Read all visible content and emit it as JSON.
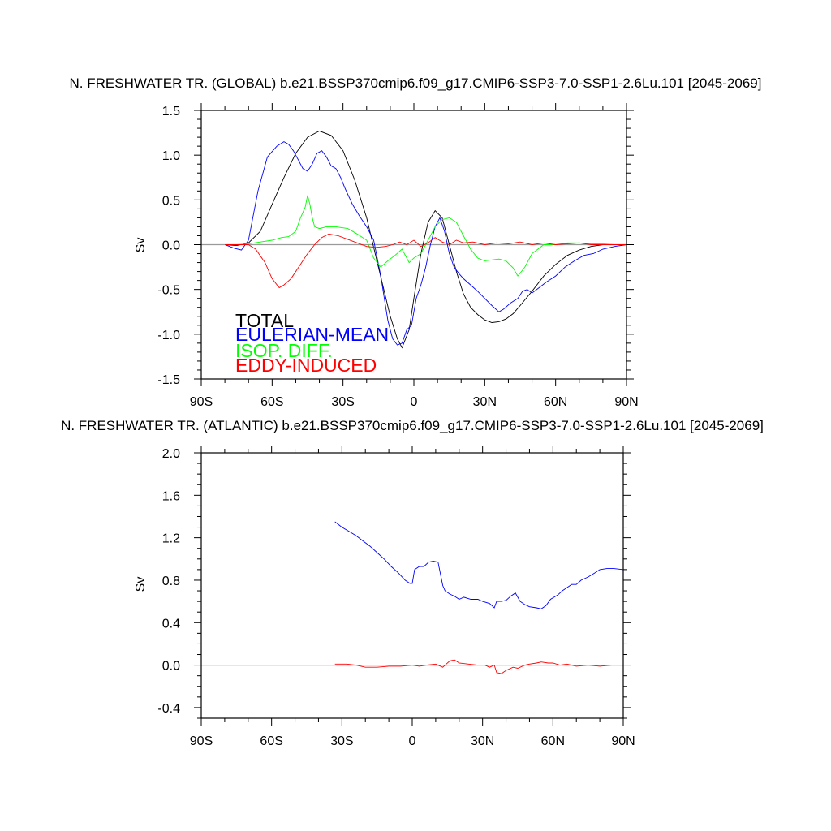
{
  "chart_data": [
    {
      "type": "line",
      "title": "N. FRESHWATER TR. (GLOBAL) b.e21.BSSP370cmip6.f09_g17.CMIP6-SSP3-7.0-SSP1-2.6Lu.101 [2045-2069]",
      "ylabel": "Sv",
      "xlim": [
        -90,
        90
      ],
      "ylim": [
        -1.5,
        1.5
      ],
      "xticks": [
        {
          "value": -90,
          "label": "90S"
        },
        {
          "value": -60,
          "label": "60S"
        },
        {
          "value": -30,
          "label": "30S"
        },
        {
          "value": 0,
          "label": "0"
        },
        {
          "value": 30,
          "label": "30N"
        },
        {
          "value": 60,
          "label": "60N"
        },
        {
          "value": 90,
          "label": "90N"
        }
      ],
      "yticks": [
        {
          "value": 1.5,
          "label": "1.5"
        },
        {
          "value": 1.0,
          "label": "1.0"
        },
        {
          "value": 0.5,
          "label": "0.5"
        },
        {
          "value": 0.0,
          "label": "0.0"
        },
        {
          "value": -0.5,
          "label": "-0.5"
        },
        {
          "value": -1.0,
          "label": "-1.0"
        },
        {
          "value": -1.5,
          "label": "-1.5"
        }
      ],
      "legend": [
        "TOTAL",
        "EULERIAN-MEAN",
        "ISOP. DIFF.",
        "EDDY-INDUCED"
      ],
      "series": [
        {
          "name": "TOTAL",
          "color": "#000000",
          "x": [
            -80,
            -75,
            -70,
            -65,
            -60,
            -55,
            -50,
            -45,
            -40,
            -35,
            -30,
            -25,
            -20,
            -15,
            -10,
            -7,
            -5,
            -2,
            0,
            3,
            6,
            9,
            12,
            15,
            18,
            21,
            24,
            27,
            30,
            33,
            36,
            39,
            42,
            45,
            50,
            55,
            60,
            65,
            70,
            75,
            80,
            85,
            90
          ],
          "y": [
            0.0,
            -0.01,
            0.02,
            0.15,
            0.45,
            0.75,
            1.02,
            1.2,
            1.27,
            1.22,
            1.05,
            0.72,
            0.3,
            -0.25,
            -0.8,
            -1.05,
            -1.15,
            -0.95,
            -0.6,
            -0.1,
            0.25,
            0.38,
            0.3,
            0.0,
            -0.3,
            -0.55,
            -0.7,
            -0.78,
            -0.84,
            -0.87,
            -0.86,
            -0.83,
            -0.77,
            -0.68,
            -0.52,
            -0.35,
            -0.22,
            -0.12,
            -0.06,
            -0.02,
            0.0,
            0.0,
            0.0
          ]
        },
        {
          "name": "EULERIAN-MEAN",
          "color": "#0000ff",
          "x": [
            -80,
            -76,
            -73,
            -70,
            -66,
            -62,
            -58,
            -55,
            -53,
            -51,
            -49,
            -47,
            -45,
            -43,
            -41,
            -39,
            -37,
            -35,
            -33,
            -31,
            -29,
            -26,
            -23,
            -20,
            -17,
            -14,
            -11,
            -9,
            -7,
            -5,
            -3,
            -1,
            1,
            3,
            5,
            7,
            9,
            11,
            13,
            15,
            17,
            19,
            21,
            24,
            27,
            30,
            33,
            36,
            38,
            41,
            44,
            46,
            48,
            50,
            53,
            56,
            60,
            64,
            68,
            72,
            76,
            80,
            85,
            90
          ],
          "y": [
            0.0,
            -0.04,
            -0.06,
            0.05,
            0.6,
            0.98,
            1.1,
            1.15,
            1.12,
            1.05,
            0.95,
            0.85,
            0.82,
            0.9,
            1.02,
            1.05,
            0.98,
            0.88,
            0.85,
            0.75,
            0.62,
            0.45,
            0.32,
            0.2,
            0.05,
            -0.35,
            -0.85,
            -1.05,
            -1.12,
            -1.1,
            -0.95,
            -0.9,
            -0.6,
            -0.45,
            -0.25,
            0.0,
            0.2,
            0.3,
            0.15,
            -0.1,
            -0.25,
            -0.32,
            -0.38,
            -0.45,
            -0.52,
            -0.6,
            -0.68,
            -0.75,
            -0.72,
            -0.65,
            -0.6,
            -0.52,
            -0.5,
            -0.54,
            -0.48,
            -0.42,
            -0.35,
            -0.25,
            -0.18,
            -0.12,
            -0.1,
            -0.05,
            -0.02,
            0.0
          ]
        },
        {
          "name": "ISOP. DIFF.",
          "color": "#00ff00",
          "x": [
            -80,
            -75,
            -70,
            -65,
            -60,
            -56,
            -53,
            -50,
            -48,
            -46,
            -45,
            -44,
            -43,
            -42,
            -40,
            -37,
            -33,
            -28,
            -24,
            -20,
            -17,
            -14,
            -11,
            -8,
            -5,
            -2,
            0,
            3,
            6,
            9,
            12,
            15,
            18,
            21,
            24,
            27,
            30,
            33,
            36,
            39,
            42,
            44,
            47,
            50,
            55,
            60,
            65,
            70,
            75,
            80,
            85,
            90
          ],
          "y": [
            0.0,
            0.0,
            0.01,
            0.03,
            0.05,
            0.08,
            0.09,
            0.15,
            0.3,
            0.42,
            0.55,
            0.45,
            0.3,
            0.2,
            0.18,
            0.2,
            0.2,
            0.18,
            0.12,
            0.05,
            -0.15,
            -0.25,
            -0.18,
            -0.12,
            -0.05,
            -0.2,
            -0.15,
            -0.1,
            0.05,
            0.2,
            0.28,
            0.3,
            0.25,
            0.1,
            -0.05,
            -0.15,
            -0.18,
            -0.17,
            -0.16,
            -0.18,
            -0.26,
            -0.35,
            -0.25,
            -0.1,
            0.0,
            0.0,
            0.02,
            0.02,
            0.01,
            0.01,
            0.0,
            0.0
          ]
        },
        {
          "name": "EDDY-INDUCED",
          "color": "#ff0000",
          "x": [
            -80,
            -75,
            -70,
            -67,
            -63,
            -60,
            -57,
            -55,
            -52,
            -48,
            -45,
            -42,
            -39,
            -36,
            -32,
            -28,
            -24,
            -20,
            -16,
            -12,
            -9,
            -6,
            -3,
            0,
            3,
            6,
            9,
            12,
            15,
            18,
            21,
            25,
            30,
            35,
            40,
            45,
            50,
            55,
            60,
            65,
            70,
            75,
            80,
            85,
            90
          ],
          "y": [
            0.0,
            0.0,
            0.0,
            -0.05,
            -0.2,
            -0.38,
            -0.48,
            -0.45,
            -0.38,
            -0.22,
            -0.1,
            0.0,
            0.08,
            0.12,
            0.1,
            0.06,
            0.02,
            -0.02,
            -0.03,
            -0.02,
            0.0,
            0.03,
            0.0,
            0.05,
            -0.02,
            0.02,
            0.08,
            0.03,
            0.0,
            0.05,
            0.02,
            0.03,
            0.0,
            0.02,
            0.01,
            0.03,
            0.0,
            0.02,
            0.0,
            0.01,
            0.02,
            0.0,
            0.0,
            0.0,
            0.0
          ]
        }
      ]
    },
    {
      "type": "line",
      "title": "N. FRESHWATER TR. (ATLANTIC) b.e21.BSSP370cmip6.f09_g17.CMIP6-SSP3-7.0-SSP1-2.6Lu.101 [2045-2069]",
      "ylabel": "Sv",
      "xlim": [
        -90,
        90
      ],
      "ylim": [
        -0.5,
        2.0
      ],
      "xticks": [
        {
          "value": -90,
          "label": "90S"
        },
        {
          "value": -60,
          "label": "60S"
        },
        {
          "value": -30,
          "label": "30S"
        },
        {
          "value": 0,
          "label": "0"
        },
        {
          "value": 30,
          "label": "30N"
        },
        {
          "value": 60,
          "label": "60N"
        },
        {
          "value": 90,
          "label": "90N"
        }
      ],
      "yticks": [
        {
          "value": 2.0,
          "label": "2.0"
        },
        {
          "value": 1.6,
          "label": "1.6"
        },
        {
          "value": 1.2,
          "label": "1.2"
        },
        {
          "value": 0.8,
          "label": "0.8"
        },
        {
          "value": 0.4,
          "label": "0.4"
        },
        {
          "value": 0.0,
          "label": "0.0"
        },
        {
          "value": -0.4,
          "label": "-0.4"
        }
      ],
      "series": [
        {
          "name": "EULERIAN-MEAN",
          "color": "#0000ff",
          "x": [
            -33,
            -30,
            -27,
            -24,
            -21,
            -18,
            -15,
            -12,
            -9,
            -6,
            -3,
            -1,
            0,
            1,
            3,
            5,
            7,
            9,
            11,
            13,
            14,
            16,
            18,
            20,
            22,
            25,
            28,
            30,
            33,
            35,
            36,
            38,
            40,
            42,
            44,
            46,
            48,
            50,
            53,
            55,
            57,
            59,
            62,
            64,
            66,
            68,
            70,
            72,
            75,
            78,
            80,
            83,
            86,
            90
          ],
          "y": [
            1.35,
            1.3,
            1.26,
            1.22,
            1.17,
            1.12,
            1.06,
            1.0,
            0.93,
            0.87,
            0.8,
            0.77,
            0.77,
            0.9,
            0.93,
            0.93,
            0.97,
            0.98,
            0.97,
            0.75,
            0.7,
            0.67,
            0.65,
            0.62,
            0.64,
            0.62,
            0.62,
            0.6,
            0.58,
            0.54,
            0.6,
            0.6,
            0.61,
            0.65,
            0.68,
            0.6,
            0.57,
            0.55,
            0.54,
            0.53,
            0.56,
            0.62,
            0.66,
            0.7,
            0.73,
            0.76,
            0.76,
            0.8,
            0.83,
            0.87,
            0.9,
            0.91,
            0.91,
            0.9
          ]
        },
        {
          "name": "EDDY-INDUCED",
          "color": "#ff0000",
          "x": [
            -33,
            -28,
            -24,
            -20,
            -15,
            -10,
            -5,
            0,
            3,
            6,
            10,
            13,
            16,
            18,
            20,
            24,
            28,
            31,
            33,
            35,
            36,
            38,
            40,
            43,
            45,
            48,
            50,
            53,
            55,
            58,
            60,
            63,
            66,
            70,
            75,
            80,
            85,
            90
          ],
          "y": [
            0.01,
            0.01,
            0.0,
            -0.02,
            -0.02,
            -0.01,
            -0.01,
            0.0,
            -0.01,
            0.0,
            0.01,
            -0.02,
            0.04,
            0.05,
            0.02,
            0.01,
            0.0,
            0.0,
            -0.02,
            0.0,
            -0.07,
            -0.08,
            -0.05,
            -0.02,
            -0.03,
            0.0,
            0.01,
            0.02,
            0.03,
            0.02,
            0.02,
            0.0,
            0.01,
            -0.01,
            0.0,
            -0.01,
            0.0,
            0.0
          ]
        }
      ]
    }
  ]
}
